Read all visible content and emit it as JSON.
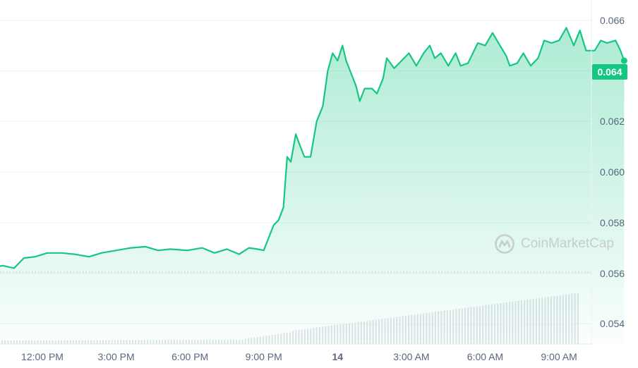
{
  "chart_data": {
    "type": "area",
    "x_ticks": [
      "12:00 PM",
      "3:00 PM",
      "6:00 PM",
      "9:00 PM",
      "14",
      "3:00 AM",
      "6:00 AM",
      "9:00 AM"
    ],
    "y_ticks": [
      "0.066",
      "0.064",
      "0.062",
      "0.060",
      "0.058",
      "0.056",
      "0.054"
    ],
    "ylim": [
      0.0532,
      0.0668
    ],
    "x_hours": [
      9.92,
      11.77
    ],
    "current_price_label": "0.064",
    "reference_price": 0.05605,
    "series": [
      {
        "points": [
          [
            9.92,
            0.056
          ],
          [
            10.1,
            0.05625
          ],
          [
            10.4,
            0.0563
          ],
          [
            10.85,
            0.0562
          ],
          [
            11.25,
            0.0566
          ],
          [
            11.7,
            0.05665
          ],
          [
            12.2,
            0.0568
          ],
          [
            12.8,
            0.0568
          ],
          [
            13.3,
            0.05675
          ],
          [
            13.9,
            0.05665
          ],
          [
            14.4,
            0.0568
          ],
          [
            15.0,
            0.0569
          ],
          [
            15.6,
            0.057
          ],
          [
            16.2,
            0.05705
          ],
          [
            16.7,
            0.0569
          ],
          [
            17.2,
            0.05695
          ],
          [
            17.9,
            0.0569
          ],
          [
            18.5,
            0.057
          ],
          [
            19.0,
            0.0568
          ],
          [
            19.5,
            0.05695
          ],
          [
            20.0,
            0.05675
          ],
          [
            20.4,
            0.057
          ],
          [
            20.75,
            0.05695
          ],
          [
            21.0,
            0.0569
          ],
          [
            21.2,
            0.0574
          ],
          [
            21.4,
            0.0579
          ],
          [
            21.6,
            0.0581
          ],
          [
            21.8,
            0.0586
          ],
          [
            21.95,
            0.0606
          ],
          [
            22.1,
            0.0604
          ],
          [
            22.3,
            0.0615
          ],
          [
            22.45,
            0.0611
          ],
          [
            22.65,
            0.0606
          ],
          [
            22.9,
            0.0606
          ],
          [
            23.15,
            0.062
          ],
          [
            23.4,
            0.0626
          ],
          [
            23.6,
            0.064
          ],
          [
            23.8,
            0.0647
          ],
          [
            24.0,
            0.0644
          ],
          [
            24.2,
            0.065
          ],
          [
            24.35,
            0.0644
          ],
          [
            24.55,
            0.0639
          ],
          [
            24.75,
            0.0634
          ],
          [
            24.9,
            0.0628
          ],
          [
            25.1,
            0.0633
          ],
          [
            25.4,
            0.0633
          ],
          [
            25.6,
            0.0631
          ],
          [
            25.85,
            0.0637
          ],
          [
            26.0,
            0.0645
          ],
          [
            26.3,
            0.0641
          ],
          [
            26.6,
            0.0644
          ],
          [
            26.9,
            0.0647
          ],
          [
            27.2,
            0.0642
          ],
          [
            27.5,
            0.0647
          ],
          [
            27.75,
            0.065
          ],
          [
            27.95,
            0.0645
          ],
          [
            28.2,
            0.0647
          ],
          [
            28.5,
            0.0642
          ],
          [
            28.8,
            0.0647
          ],
          [
            29.0,
            0.0642
          ],
          [
            29.3,
            0.0643
          ],
          [
            29.7,
            0.0651
          ],
          [
            30.0,
            0.065
          ],
          [
            30.3,
            0.0655
          ],
          [
            30.6,
            0.065
          ],
          [
            30.85,
            0.0646
          ],
          [
            31.0,
            0.0642
          ],
          [
            31.3,
            0.0643
          ],
          [
            31.55,
            0.0647
          ],
          [
            31.85,
            0.0642
          ],
          [
            32.15,
            0.0645
          ],
          [
            32.4,
            0.0652
          ],
          [
            32.7,
            0.0651
          ],
          [
            33.0,
            0.0652
          ],
          [
            33.3,
            0.0657
          ],
          [
            33.6,
            0.065
          ],
          [
            33.85,
            0.0656
          ],
          [
            34.1,
            0.0648
          ],
          [
            34.45,
            0.0648
          ],
          [
            34.7,
            0.0652
          ],
          [
            34.95,
            0.0651
          ],
          [
            35.3,
            0.0652
          ],
          [
            35.5,
            0.0648
          ],
          [
            35.65,
            0.0644
          ]
        ]
      }
    ],
    "volume_bars": 195,
    "grid": "horizontal",
    "watermark": "CoinMarketCap"
  },
  "colors": {
    "line": "#16c784",
    "grid": "#eff2f5",
    "axis_text": "#58667e",
    "reference": "#b3b9c2",
    "volume": "#dfe3ea",
    "logo": "#c8ccd3"
  },
  "icons": {
    "watermark_logo": "coinmarketcap-logo-icon"
  }
}
